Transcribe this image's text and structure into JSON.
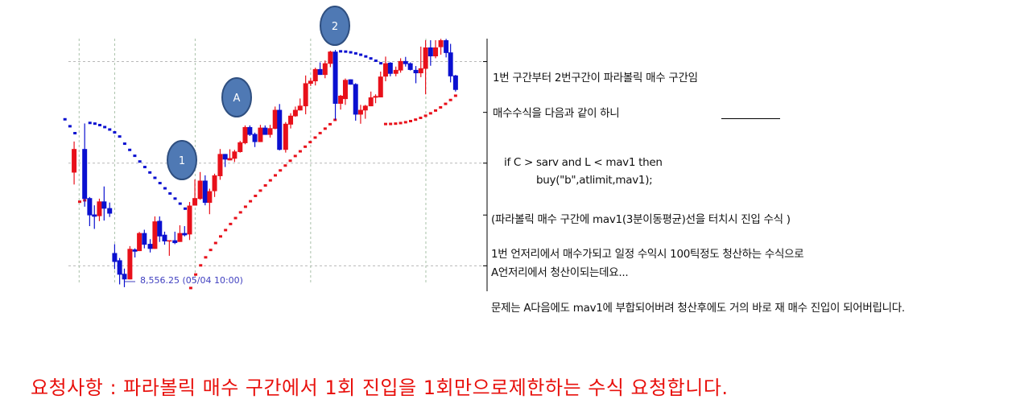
{
  "chart": {
    "price_label": "8,556.25 (05/04 10:00)",
    "markers": [
      {
        "label": "1"
      },
      {
        "label": "A"
      },
      {
        "label": "2"
      }
    ],
    "colors": {
      "up": "#e8101a",
      "down": "#0a10d0",
      "sar_up": "#e8101a",
      "sar_down": "#0a10d0",
      "marker": "#4f79b4"
    }
  },
  "notes": {
    "line1": "1번 구간부터 2번구간이 파라볼릭 매수 구간임",
    "line2": "매수수식을 다음과 같이 하니",
    "code1": "if C > sarv and L < mav1    then",
    "code2": "buy(\"b\",atlimit,mav1);",
    "line3": "(파라볼릭 매수 구간에 mav1(3분이동평균)선을 터치시 진입 수식 )",
    "line4": "1번 언저리에서 매수가되고 일정 수익시 100틱정도 청산하는 수식으로",
    "line5": "A언저리에서 청산이되는데요...",
    "line6": "문제는 A다음에도 mav1에 부합되어버려 청산후에도 거의 바로 재 매수 진입이 되어버립니다."
  },
  "request": "요청사항 :  파라볼릭 매수 구간에서 1회 진입을 1회만으로제한하는 수식 요청합니다."
}
